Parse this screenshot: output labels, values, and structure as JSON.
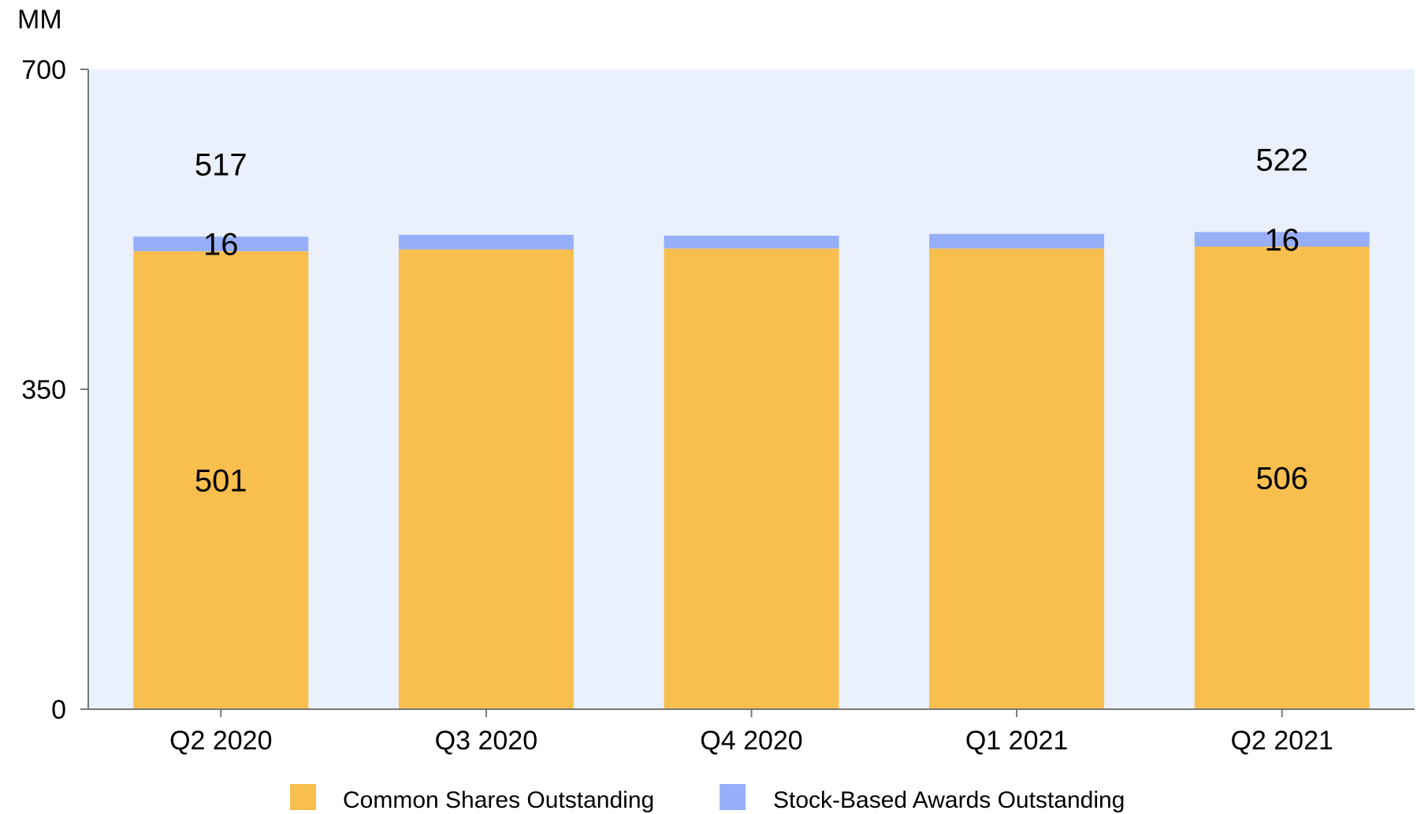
{
  "chart_data": {
    "type": "bar",
    "stacked": true,
    "unit_label": "MM",
    "categories": [
      "Q2 2020",
      "Q3 2020",
      "Q4 2020",
      "Q1 2021",
      "Q2 2021"
    ],
    "series": [
      {
        "name": "Common Shares Outstanding",
        "color": "#F8BF4F",
        "values": [
          501,
          503,
          504,
          504,
          506
        ],
        "labels": [
          "501",
          "",
          "",
          "",
          "506"
        ]
      },
      {
        "name": "Stock-Based Awards Outstanding",
        "color": "#97AFF9",
        "values": [
          16,
          16,
          14,
          16,
          16
        ],
        "labels": [
          "16",
          "",
          "",
          "",
          "16"
        ]
      }
    ],
    "totals": [
      "517",
      "",
      "",
      "",
      "522"
    ],
    "ylim": [
      0,
      700
    ],
    "yticks": [
      {
        "value": 0,
        "label": "0"
      },
      {
        "value": 350,
        "label": "350"
      },
      {
        "value": 700,
        "label": "700"
      }
    ],
    "plot_background": "#EAF1FC",
    "axis_color": "#777777",
    "grid": false,
    "legend_position": "bottom"
  }
}
